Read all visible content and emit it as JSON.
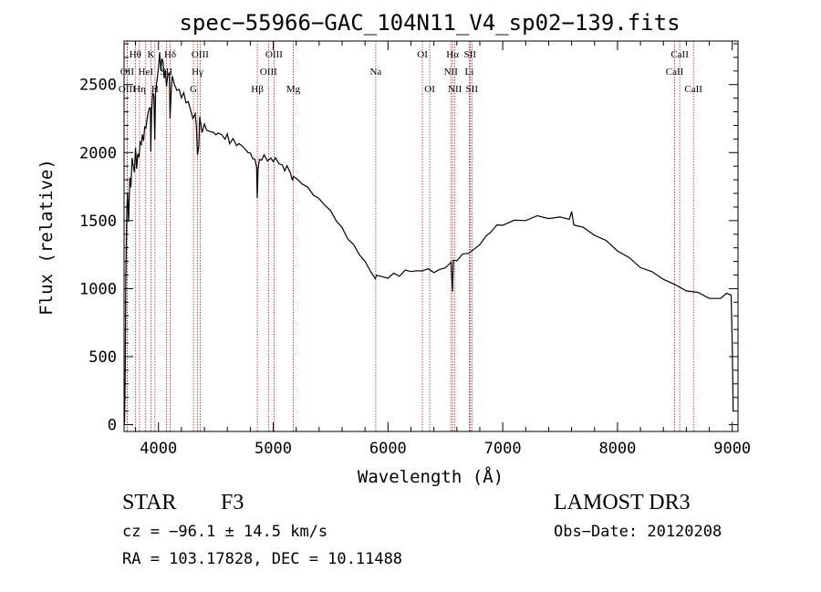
{
  "chart_data": {
    "type": "line",
    "title": "spec−55966−GAC_104N11_V4_sp02−139.fits",
    "xlabel": "Wavelength (Å)",
    "ylabel": "Flux (relative)",
    "xlim": [
      3700,
      9050
    ],
    "ylim": [
      -50,
      2820
    ],
    "xticks": [
      4000,
      5000,
      6000,
      7000,
      8000,
      9000
    ],
    "yticks": [
      0,
      500,
      1000,
      1500,
      2000,
      2500
    ],
    "grid": false,
    "series": [
      {
        "name": "flux",
        "color": "#000000",
        "points": [
          [
            3700,
            0
          ],
          [
            3705,
            30
          ],
          [
            3710,
            380
          ],
          [
            3715,
            1050
          ],
          [
            3720,
            1350
          ],
          [
            3725,
            1600
          ],
          [
            3730,
            1700
          ],
          [
            3740,
            1500
          ],
          [
            3750,
            1800
          ],
          [
            3760,
            1750
          ],
          [
            3770,
            1950
          ],
          [
            3780,
            1900
          ],
          [
            3790,
            1850
          ],
          [
            3800,
            2050
          ],
          [
            3810,
            1880
          ],
          [
            3820,
            2000
          ],
          [
            3830,
            1950
          ],
          [
            3840,
            2080
          ],
          [
            3850,
            2050
          ],
          [
            3860,
            2150
          ],
          [
            3870,
            2080
          ],
          [
            3880,
            2200
          ],
          [
            3890,
            2180
          ],
          [
            3900,
            2250
          ],
          [
            3910,
            2280
          ],
          [
            3920,
            2330
          ],
          [
            3930,
            2320
          ],
          [
            3933,
            2020
          ],
          [
            3940,
            2300
          ],
          [
            3950,
            2450
          ],
          [
            3960,
            2400
          ],
          [
            3968,
            2100
          ],
          [
            3975,
            2450
          ],
          [
            3990,
            2550
          ],
          [
            4000,
            2620
          ],
          [
            4010,
            2750
          ],
          [
            4020,
            2600
          ],
          [
            4030,
            2700
          ],
          [
            4040,
            2650
          ],
          [
            4050,
            2550
          ],
          [
            4060,
            2600
          ],
          [
            4070,
            2500
          ],
          [
            4080,
            2560
          ],
          [
            4095,
            2600
          ],
          [
            4101,
            2250
          ],
          [
            4110,
            2450
          ],
          [
            4120,
            2550
          ],
          [
            4140,
            2500
          ],
          [
            4160,
            2450
          ],
          [
            4180,
            2480
          ],
          [
            4200,
            2400
          ],
          [
            4220,
            2450
          ],
          [
            4240,
            2350
          ],
          [
            4260,
            2380
          ],
          [
            4280,
            2300
          ],
          [
            4300,
            2250
          ],
          [
            4320,
            2280
          ],
          [
            4330,
            2200
          ],
          [
            4340,
            1980
          ],
          [
            4350,
            2050
          ],
          [
            4360,
            2250
          ],
          [
            4380,
            2150
          ],
          [
            4400,
            2200
          ],
          [
            4420,
            2180
          ],
          [
            4450,
            2150
          ],
          [
            4480,
            2160
          ],
          [
            4500,
            2130
          ],
          [
            4520,
            2150
          ],
          [
            4550,
            2120
          ],
          [
            4580,
            2100
          ],
          [
            4600,
            2130
          ],
          [
            4620,
            2080
          ],
          [
            4650,
            2100
          ],
          [
            4680,
            2060
          ],
          [
            4700,
            2050
          ],
          [
            4720,
            2060
          ],
          [
            4750,
            2020
          ],
          [
            4780,
            2000
          ],
          [
            4800,
            1990
          ],
          [
            4820,
            1970
          ],
          [
            4840,
            1950
          ],
          [
            4855,
            1900
          ],
          [
            4861,
            1650
          ],
          [
            4868,
            1880
          ],
          [
            4880,
            1940
          ],
          [
            4900,
            1960
          ],
          [
            4920,
            1980
          ],
          [
            4950,
            1950
          ],
          [
            4980,
            1960
          ],
          [
            5000,
            1940
          ],
          [
            5020,
            1950
          ],
          [
            5050,
            1920
          ],
          [
            5080,
            1900
          ],
          [
            5100,
            1880
          ],
          [
            5120,
            1900
          ],
          [
            5150,
            1860
          ],
          [
            5167,
            1780
          ],
          [
            5175,
            1830
          ],
          [
            5200,
            1800
          ],
          [
            5250,
            1770
          ],
          [
            5300,
            1740
          ],
          [
            5350,
            1700
          ],
          [
            5400,
            1660
          ],
          [
            5450,
            1620
          ],
          [
            5500,
            1560
          ],
          [
            5550,
            1500
          ],
          [
            5600,
            1440
          ],
          [
            5650,
            1380
          ],
          [
            5700,
            1320
          ],
          [
            5750,
            1260
          ],
          [
            5800,
            1200
          ],
          [
            5850,
            1130
          ],
          [
            5890,
            1060
          ],
          [
            5900,
            1100
          ],
          [
            5950,
            1080
          ],
          [
            6000,
            1090
          ],
          [
            6050,
            1110
          ],
          [
            6100,
            1100
          ],
          [
            6150,
            1120
          ],
          [
            6200,
            1130
          ],
          [
            6250,
            1120
          ],
          [
            6300,
            1130
          ],
          [
            6350,
            1140
          ],
          [
            6400,
            1130
          ],
          [
            6450,
            1140
          ],
          [
            6500,
            1160
          ],
          [
            6550,
            1180
          ],
          [
            6563,
            980
          ],
          [
            6570,
            1200
          ],
          [
            6600,
            1220
          ],
          [
            6650,
            1250
          ],
          [
            6700,
            1270
          ],
          [
            6750,
            1290
          ],
          [
            6800,
            1330
          ],
          [
            6850,
            1370
          ],
          [
            6900,
            1420
          ],
          [
            6950,
            1460
          ],
          [
            7000,
            1480
          ],
          [
            7100,
            1500
          ],
          [
            7200,
            1510
          ],
          [
            7300,
            1520
          ],
          [
            7400,
            1520
          ],
          [
            7500,
            1515
          ],
          [
            7580,
            1510
          ],
          [
            7600,
            1560
          ],
          [
            7620,
            1480
          ],
          [
            7700,
            1450
          ],
          [
            7800,
            1400
          ],
          [
            7900,
            1340
          ],
          [
            8000,
            1280
          ],
          [
            8100,
            1220
          ],
          [
            8200,
            1170
          ],
          [
            8300,
            1120
          ],
          [
            8400,
            1080
          ],
          [
            8500,
            1030
          ],
          [
            8600,
            990
          ],
          [
            8700,
            960
          ],
          [
            8800,
            930
          ],
          [
            8900,
            920
          ],
          [
            8950,
            980
          ],
          [
            8990,
            950
          ],
          [
            9000,
            600
          ],
          [
            9005,
            300
          ],
          [
            9008,
            100
          ]
        ]
      }
    ],
    "lines": [
      {
        "label": "Hθ",
        "wavelength": 3798,
        "row": 0
      },
      {
        "label": "OII",
        "wavelength": 3727,
        "row": 1
      },
      {
        "label": "OIII",
        "wavelength": 3727,
        "row": 2
      },
      {
        "label": "Hη",
        "wavelength": 3835,
        "row": 2
      },
      {
        "label": "HeI",
        "wavelength": 3889,
        "row": 1
      },
      {
        "label": "K",
        "wavelength": 3934,
        "row": 0
      },
      {
        "label": "H",
        "wavelength": 3969,
        "row": 2
      },
      {
        "label": "SII",
        "wavelength": 4069,
        "row": 1
      },
      {
        "label": "Hδ",
        "wavelength": 4102,
        "row": 0
      },
      {
        "label": "OIII",
        "wavelength": 4363,
        "row": 0
      },
      {
        "label": "Hγ",
        "wavelength": 4340,
        "row": 1
      },
      {
        "label": "G",
        "wavelength": 4305,
        "row": 2
      },
      {
        "label": "Hβ",
        "wavelength": 4861,
        "row": 2
      },
      {
        "label": "OIII",
        "wavelength": 4959,
        "row": 1
      },
      {
        "label": "OIII",
        "wavelength": 5007,
        "row": 0
      },
      {
        "label": "Mg",
        "wavelength": 5175,
        "row": 2
      },
      {
        "label": "Na",
        "wavelength": 5893,
        "row": 1
      },
      {
        "label": "OI",
        "wavelength": 6300,
        "row": 0
      },
      {
        "label": "OI",
        "wavelength": 6364,
        "row": 2
      },
      {
        "label": "Hα",
        "wavelength": 6563,
        "row": 0
      },
      {
        "label": "NII",
        "wavelength": 6548,
        "row": 1
      },
      {
        "label": "NII",
        "wavelength": 6583,
        "row": 2
      },
      {
        "label": "SII",
        "wavelength": 6716,
        "row": 0
      },
      {
        "label": "Li",
        "wavelength": 6708,
        "row": 1
      },
      {
        "label": "SII",
        "wavelength": 6731,
        "row": 2
      },
      {
        "label": "CaII",
        "wavelength": 8498,
        "row": 1
      },
      {
        "label": "CaII",
        "wavelength": 8542,
        "row": 0
      },
      {
        "label": "CaII",
        "wavelength": 8662,
        "row": 2
      }
    ]
  },
  "info": {
    "class": "STAR",
    "subclass": "F3",
    "survey": "LAMOST DR3",
    "cz": "cz = −96.1 ± 14.5 km/s",
    "obs_date": "Obs−Date: 20120208",
    "coords": "RA = 103.17828, DEC =  10.11488"
  },
  "colors": {
    "spectrum": "#000000",
    "line_markers": "#b22222",
    "axes": "#000000"
  }
}
